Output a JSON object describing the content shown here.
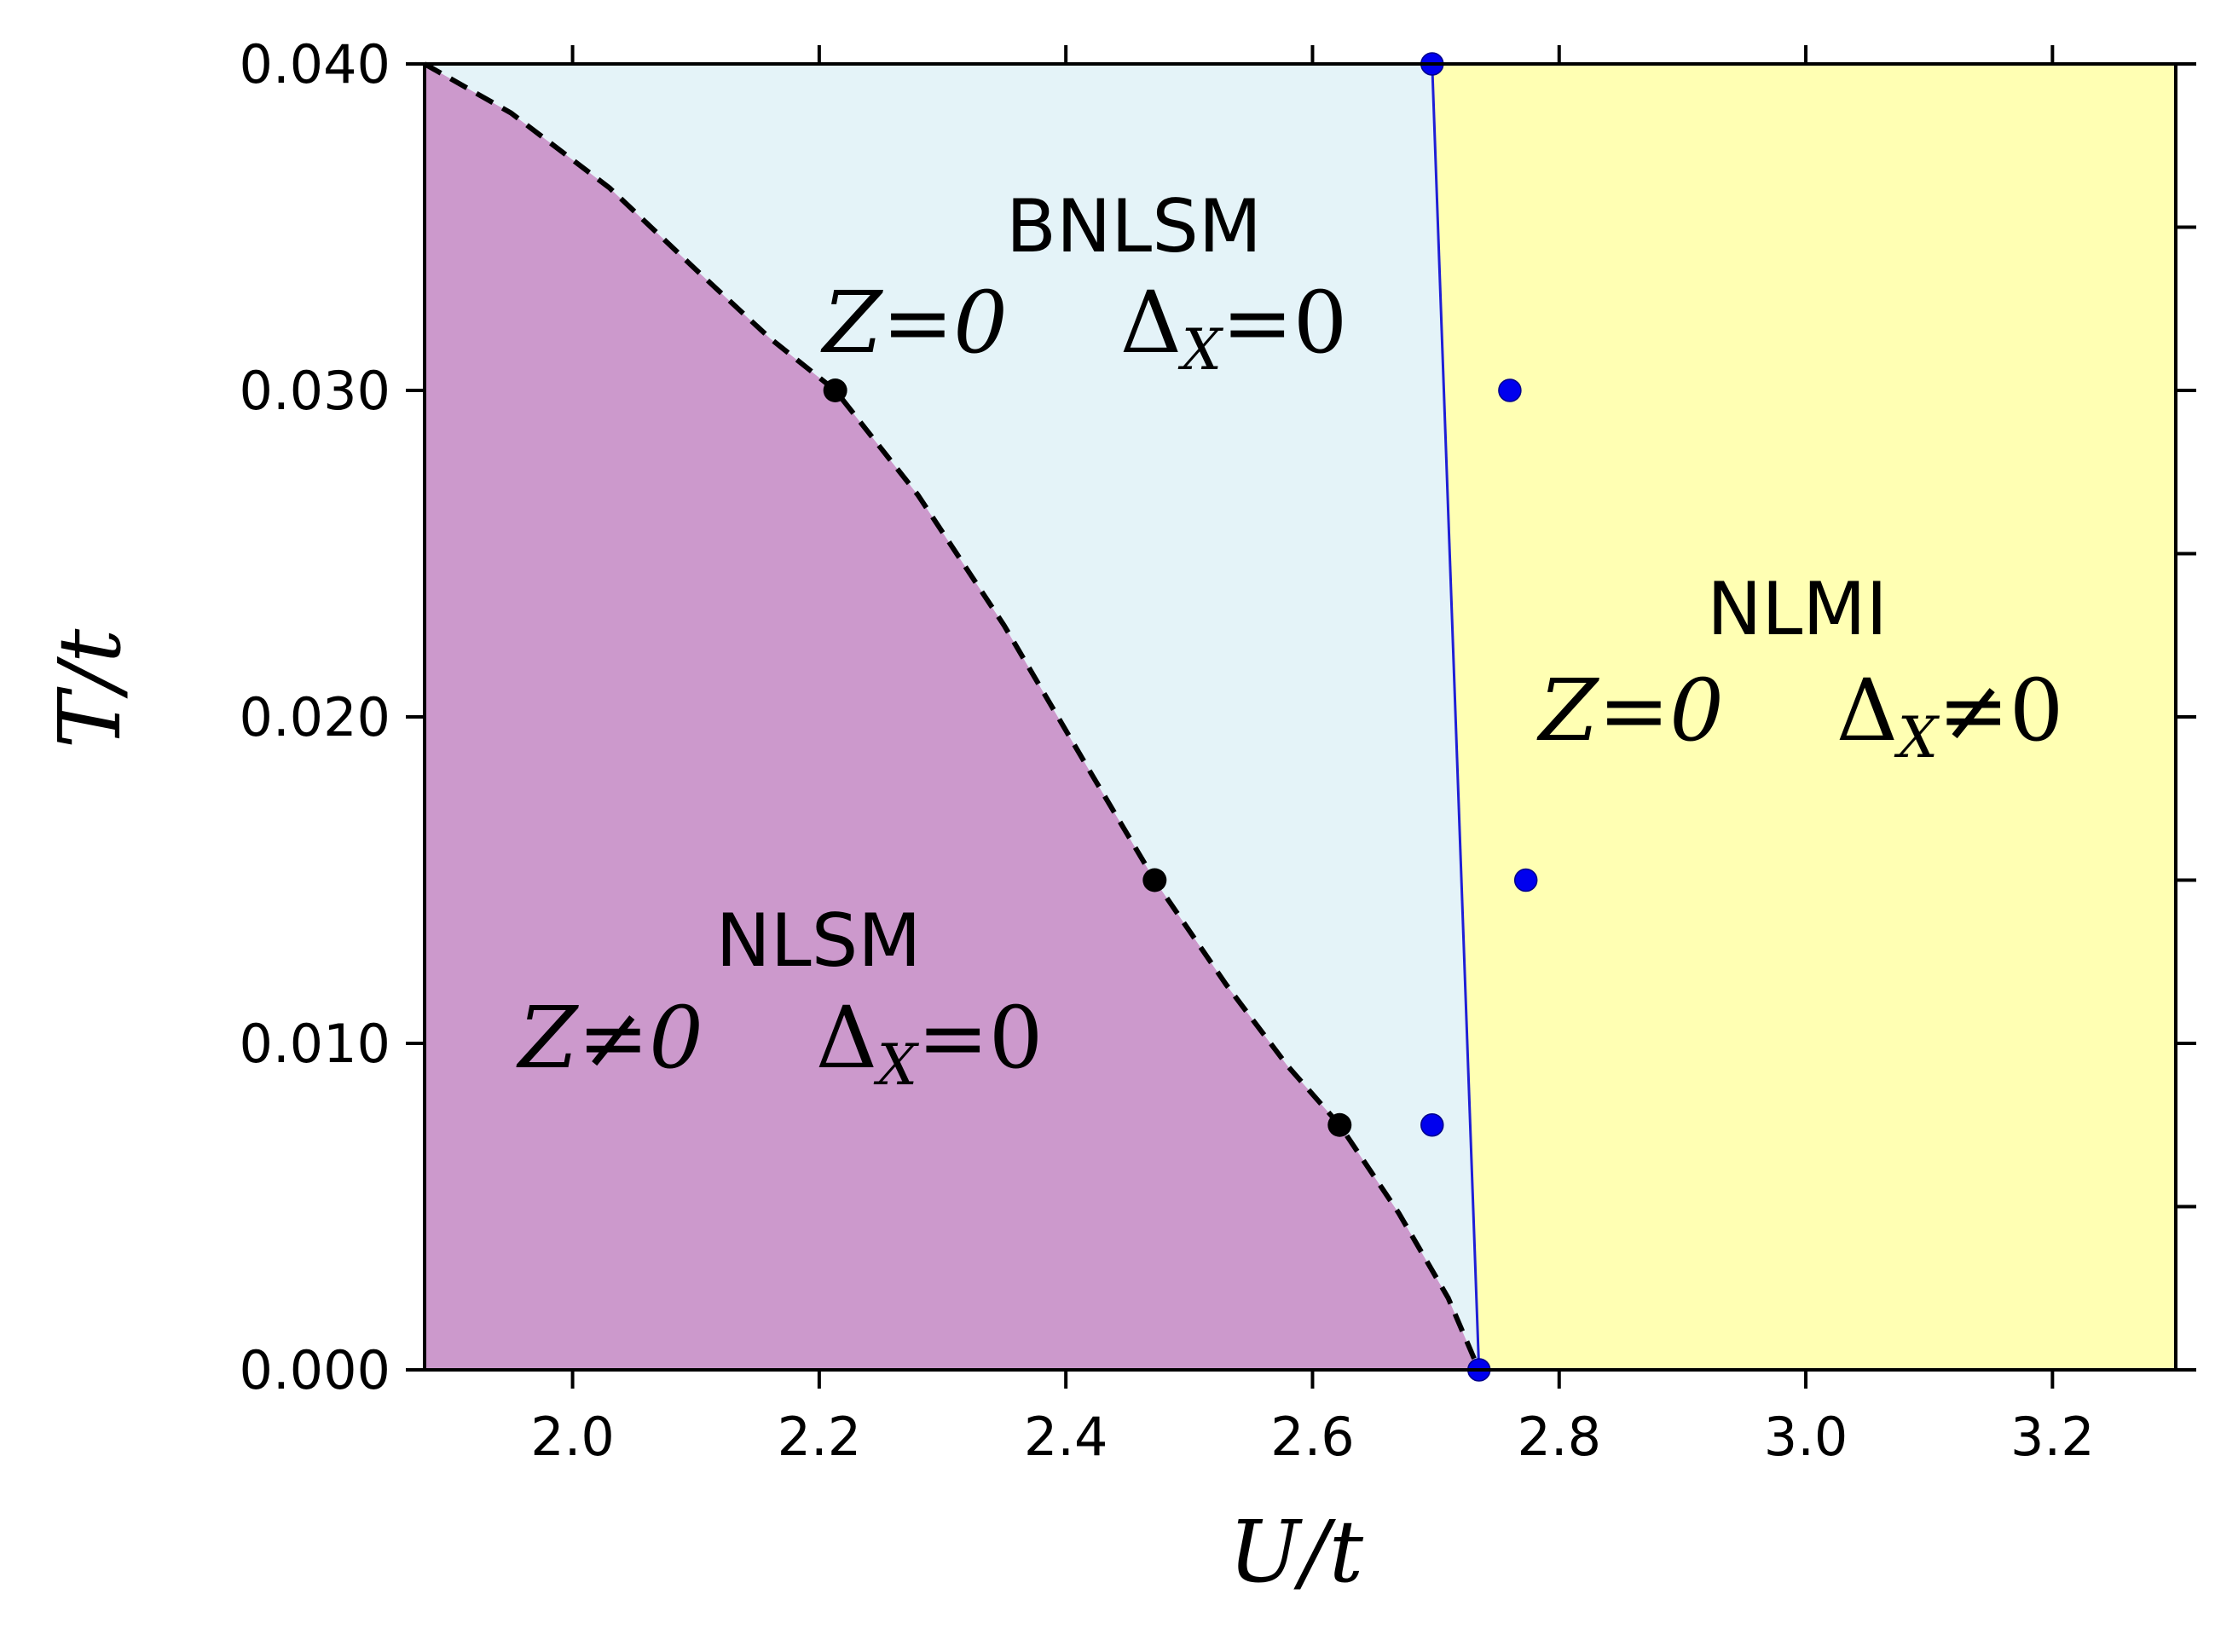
{
  "chart_data": {
    "type": "phase-diagram",
    "title": "",
    "xlabel": "U/t",
    "ylabel": "T/t",
    "xlim": [
      1.88,
      3.3
    ],
    "ylim": [
      0.0,
      0.04
    ],
    "x_ticks": [
      {
        "value": 2.0,
        "label": "2.0"
      },
      {
        "value": 2.2,
        "label": "2.2"
      },
      {
        "value": 2.4,
        "label": "2.4"
      },
      {
        "value": 2.6,
        "label": "2.6"
      },
      {
        "value": 2.8,
        "label": "2.8"
      },
      {
        "value": 3.0,
        "label": "3.0"
      },
      {
        "value": 3.2,
        "label": "3.2"
      }
    ],
    "y_ticks": [
      {
        "value": 0.0,
        "label": "0.000"
      },
      {
        "value": 0.01,
        "label": "0.010"
      },
      {
        "value": 0.02,
        "label": "0.020"
      },
      {
        "value": 0.03,
        "label": "0.030"
      },
      {
        "value": 0.04,
        "label": "0.040"
      }
    ],
    "y_minor_ticks_right": [
      0.005,
      0.015,
      0.025,
      0.035
    ],
    "grid": false,
    "colors": {
      "nlsm_region": "#cc99cc",
      "bnlsm_region": "#e4f3f8",
      "nlmi_region": "#ffffb3",
      "dashed_boundary": "#000000",
      "black_points": "#000000",
      "blue_boundary": "#1f1fd6",
      "blue_points": "#0000ee"
    },
    "dashed_boundary_curve": [
      {
        "x": 1.88,
        "y": 0.04
      },
      {
        "x": 1.95,
        "y": 0.0385
      },
      {
        "x": 2.03,
        "y": 0.0362
      },
      {
        "x": 2.1,
        "y": 0.0337
      },
      {
        "x": 2.16,
        "y": 0.0316
      },
      {
        "x": 2.213,
        "y": 0.03
      },
      {
        "x": 2.28,
        "y": 0.0268
      },
      {
        "x": 2.35,
        "y": 0.0228
      },
      {
        "x": 2.42,
        "y": 0.0183
      },
      {
        "x": 2.472,
        "y": 0.015
      },
      {
        "x": 2.53,
        "y": 0.0118
      },
      {
        "x": 2.58,
        "y": 0.0093
      },
      {
        "x": 2.622,
        "y": 0.0075
      },
      {
        "x": 2.67,
        "y": 0.0048
      },
      {
        "x": 2.71,
        "y": 0.0022
      },
      {
        "x": 2.735,
        "y": 0.0
      }
    ],
    "black_points": [
      {
        "x": 2.213,
        "y": 0.03
      },
      {
        "x": 2.472,
        "y": 0.015
      },
      {
        "x": 2.622,
        "y": 0.0075
      }
    ],
    "blue_boundary_line": [
      {
        "x": 2.697,
        "y": 0.04
      },
      {
        "x": 2.735,
        "y": 0.0
      }
    ],
    "blue_points": [
      {
        "x": 2.697,
        "y": 0.04
      },
      {
        "x": 2.76,
        "y": 0.03
      },
      {
        "x": 2.773,
        "y": 0.015
      },
      {
        "x": 2.697,
        "y": 0.0075
      },
      {
        "x": 2.735,
        "y": 0.0
      }
    ],
    "regions": [
      {
        "name": "NLSM",
        "condition": "Z≠0   Δ_X=0"
      },
      {
        "name": "BNLSM",
        "condition": "Z=0   Δ_X=0"
      },
      {
        "name": "NLMI",
        "condition": "Z=0   Δ_X≠0"
      }
    ],
    "region_labels": {
      "nlsm": {
        "name": "NLSM",
        "z": "Z≠0",
        "delta": "Δ",
        "delta_sub": "X",
        "delta_rel": "=0"
      },
      "bnlsm": {
        "name": "BNLSM",
        "z": "Z=0",
        "delta": "Δ",
        "delta_sub": "X",
        "delta_rel": "=0"
      },
      "nlmi": {
        "name": "NLMI",
        "z": "Z=0",
        "delta": "Δ",
        "delta_sub": "X",
        "delta_rel": "≠0"
      }
    }
  }
}
